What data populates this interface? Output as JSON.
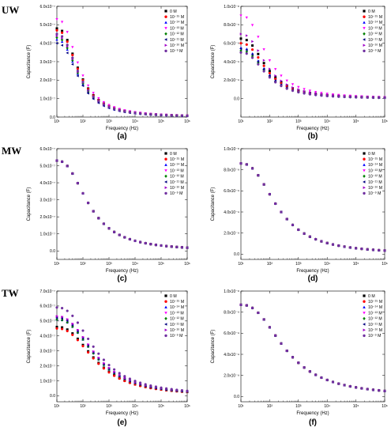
{
  "rows": [
    "UW",
    "MW",
    "TW"
  ],
  "legend": {
    "entries": [
      "0 M",
      "10⁻¹⁵ M",
      "10⁻¹⁴ M",
      "10⁻¹³ M",
      "10⁻¹² M",
      "10⁻¹¹ M",
      "10⁻¹⁰ M",
      "10⁻⁹ M"
    ],
    "colors": [
      "#000000",
      "#ff0000",
      "#0000ff",
      "#ff00ff",
      "#008000",
      "#000080",
      "#a000c8",
      "#7030a0"
    ],
    "markers": [
      "square",
      "circle",
      "triangle-up",
      "triangle-down",
      "diamond",
      "triangle-left",
      "triangle-right",
      "circle"
    ],
    "placement": "top-right"
  },
  "chart_data": [
    {
      "panel": "(a)",
      "row": "UW",
      "type": "scatter",
      "xlabel": "Frequency (Hz)",
      "ylabel": "Capacitance (F)",
      "xscale": "log",
      "xlim": [
        10,
        1000000
      ],
      "xticks": [
        "10¹",
        "10²",
        "10³",
        "10⁴",
        "10⁵",
        "10⁶"
      ],
      "ylim": [
        0,
        6e-07
      ],
      "yticks": [
        "0.0",
        "1.0x10⁻⁷",
        "2.0x10⁻⁷",
        "3.0x10⁻⁷",
        "4.0x10⁻⁷",
        "5.0x10⁻⁷",
        "6.0x10⁻⁷"
      ],
      "series_start": [
        4.8e-07,
        4.7e-07,
        4.2e-07,
        5.3e-07,
        4.3e-07,
        4e-07,
        4.4e-07,
        4.5e-07
      ],
      "knee_decades": 1.6,
      "grid": false
    },
    {
      "panel": "(b)",
      "row": "UW",
      "type": "scatter",
      "xlabel": "Frequency (Hz)",
      "ylabel": "Capacitance (F)",
      "xscale": "log",
      "xlim": [
        10,
        1000000
      ],
      "xticks": [
        "10¹",
        "10²",
        "10³",
        "10⁴",
        "10⁵",
        "10⁶"
      ],
      "ylim": [
        -2e-09,
        1e-08
      ],
      "yticks": [
        "0.0",
        "2.0x10⁻⁹",
        "4.0x10⁻⁹",
        "6.0x10⁻⁹",
        "8.0x10⁻⁹",
        "1.0x10⁻⁸"
      ],
      "series_start": [
        6.5e-09,
        6e-09,
        5.5e-09,
        9e-09,
        5.2e-09,
        5.4e-09,
        7e-09,
        5e-09
      ],
      "knee_decades": 1.7,
      "grid": false
    },
    {
      "panel": "(c)",
      "row": "MW",
      "type": "scatter",
      "xlabel": "Frequency (Hz)",
      "ylabel": "Capacitance (F)",
      "xscale": "log",
      "xlim": [
        10,
        1000000
      ],
      "xticks": [
        "10¹",
        "10²",
        "10³",
        "10⁴",
        "10⁵",
        "10⁶"
      ],
      "ylim": [
        -5e-08,
        6e-07
      ],
      "yticks": [
        "0.0",
        "1.0x10⁻⁷",
        "2.0x10⁻⁷",
        "3.0x10⁻⁷",
        "4.0x10⁻⁷",
        "5.0x10⁻⁷",
        "6.0x10⁻⁷"
      ],
      "series_start": [
        5.3e-07,
        5.3e-07,
        5.3e-07,
        5.3e-07,
        5.3e-07,
        5.3e-07,
        5.3e-07,
        5.3e-07
      ],
      "knee_decades": 2.3,
      "grid": false
    },
    {
      "panel": "(d)",
      "row": "MW",
      "type": "scatter",
      "xlabel": "Frequency (Hz)",
      "ylabel": "Capacitance (F)",
      "xscale": "log",
      "xlim": [
        10,
        1000000
      ],
      "xticks": [
        "10¹",
        "10²",
        "10³",
        "10⁴",
        "10⁵",
        "10⁶"
      ],
      "ylim": [
        -5e-10,
        1e-08
      ],
      "yticks": [
        "0.0",
        "2.0x10⁻⁹",
        "4.0x10⁻⁹",
        "6.0x10⁻⁹",
        "8.0x10⁻⁹",
        "1.0x10⁻⁸"
      ],
      "series_start": [
        8.6e-09,
        8.6e-09,
        8.6e-09,
        8.6e-09,
        8.6e-09,
        8.6e-09,
        8.6e-09,
        8.6e-09
      ],
      "knee_decades": 2.4,
      "grid": false
    },
    {
      "panel": "(e)",
      "row": "TW",
      "type": "scatter",
      "xlabel": "Frequency (Hz)",
      "ylabel": "Capacitance (F)",
      "xscale": "log",
      "xlim": [
        10,
        1000000
      ],
      "xticks": [
        "10¹",
        "10²",
        "10³",
        "10⁴",
        "10⁵",
        "10⁶"
      ],
      "ylim": [
        -4e-08,
        7e-07
      ],
      "yticks": [
        "0.0",
        "1.0x10⁻⁷",
        "2.0x10⁻⁷",
        "3.0x10⁻⁷",
        "4.0x10⁻⁷",
        "5.0x10⁻⁷",
        "6.0x10⁻⁷",
        "7.0x10⁻⁷"
      ],
      "series_start": [
        4.6e-07,
        4.5e-07,
        5.1e-07,
        5.3e-07,
        5.1e-07,
        5.2e-07,
        5.3e-07,
        5.9e-07
      ],
      "knee_decades": 2.8,
      "grid": false
    },
    {
      "panel": "(f)",
      "row": "TW",
      "type": "scatter",
      "xlabel": "Frequency (Hz)",
      "ylabel": "Capacitance (F)",
      "xscale": "log",
      "xlim": [
        10,
        1000000
      ],
      "xticks": [
        "10¹",
        "10²",
        "10³",
        "10⁴",
        "10⁵",
        "10⁶"
      ],
      "ylim": [
        -5e-10,
        1e-08
      ],
      "yticks": [
        "0.0",
        "2.0x10⁻⁹",
        "4.0x10⁻⁹",
        "6.0x10⁻⁹",
        "8.0x10⁻⁹",
        "1.0x10⁻⁸"
      ],
      "series_start": [
        8.7e-09,
        8.7e-09,
        8.7e-09,
        8.7e-09,
        8.7e-09,
        8.7e-09,
        8.7e-09,
        8.7e-09
      ],
      "knee_decades": 2.9,
      "grid": false
    }
  ]
}
